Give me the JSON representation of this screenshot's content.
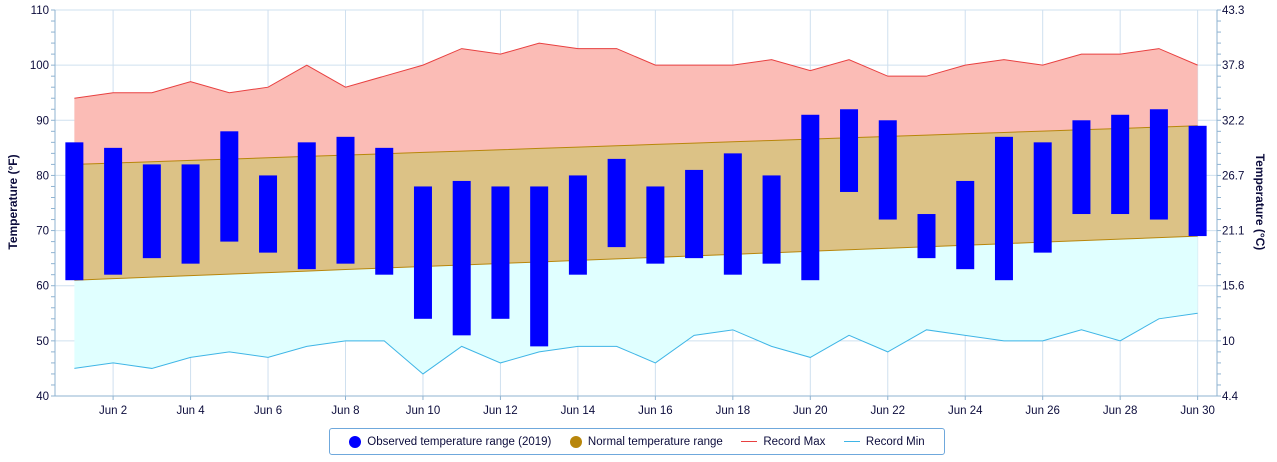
{
  "chart_data": {
    "type": "bar",
    "x": [
      "Jun 1",
      "Jun 2",
      "Jun 3",
      "Jun 4",
      "Jun 5",
      "Jun 6",
      "Jun 7",
      "Jun 8",
      "Jun 9",
      "Jun 10",
      "Jun 11",
      "Jun 12",
      "Jun 13",
      "Jun 14",
      "Jun 15",
      "Jun 16",
      "Jun 17",
      "Jun 18",
      "Jun 19",
      "Jun 20",
      "Jun 21",
      "Jun 22",
      "Jun 23",
      "Jun 24",
      "Jun 25",
      "Jun 26",
      "Jun 27",
      "Jun 28",
      "Jun 29",
      "Jun 30"
    ],
    "x_tick_labels": [
      "Jun 2",
      "Jun 4",
      "Jun 6",
      "Jun 8",
      "Jun 10",
      "Jun 12",
      "Jun 14",
      "Jun 16",
      "Jun 18",
      "Jun 20",
      "Jun 22",
      "Jun 24",
      "Jun 26",
      "Jun 28",
      "Jun 30"
    ],
    "ylabel": "Temperature (°F)",
    "ylabel_right": "Temperature (°C)",
    "ylim": [
      40,
      110
    ],
    "y_ticks": [
      40,
      50,
      60,
      70,
      80,
      90,
      100,
      110
    ],
    "y_right_ticks": [
      "4.4",
      "10",
      "15.6",
      "21.1",
      "26.7",
      "32.2",
      "37.8",
      "43.3"
    ],
    "grid": true,
    "legend_position": "bottom",
    "series": [
      {
        "name": "Observed temperature range (2019)",
        "type": "columnrange",
        "color": "#0000ff",
        "low": [
          61,
          62,
          65,
          64,
          68,
          66,
          63,
          64,
          62,
          54,
          51,
          54,
          49,
          62,
          67,
          64,
          65,
          62,
          64,
          61,
          77,
          72,
          65,
          63,
          61,
          66,
          73,
          73,
          72,
          69
        ],
        "high": [
          86,
          85,
          82,
          82,
          88,
          80,
          86,
          87,
          85,
          78,
          79,
          78,
          78,
          80,
          83,
          78,
          81,
          84,
          80,
          91,
          92,
          90,
          73,
          79,
          87,
          86,
          90,
          91,
          92,
          89
        ]
      },
      {
        "name": "Normal temperature range",
        "type": "arearange",
        "color": "#b8860b",
        "fill": "#dcc286",
        "low_start": 61,
        "low_end": 69,
        "high_start": 82,
        "high_end": 89
      },
      {
        "name": "Record Max",
        "type": "line",
        "color": "#e84040",
        "fill": "#fbbcb6",
        "values": [
          94,
          95,
          95,
          97,
          95,
          96,
          100,
          96,
          98,
          100,
          103,
          102,
          104,
          103,
          103,
          100,
          100,
          100,
          101,
          99,
          101,
          98,
          98,
          100,
          101,
          100,
          102,
          102,
          103,
          100
        ]
      },
      {
        "name": "Record Min",
        "type": "line",
        "color": "#3fb5e6",
        "fill": "#e0ffff",
        "values": [
          45,
          46,
          45,
          47,
          48,
          47,
          49,
          50,
          50,
          44,
          49,
          46,
          48,
          49,
          49,
          46,
          51,
          52,
          49,
          47,
          51,
          48,
          52,
          51,
          50,
          50,
          52,
          50,
          54,
          55
        ]
      }
    ]
  }
}
